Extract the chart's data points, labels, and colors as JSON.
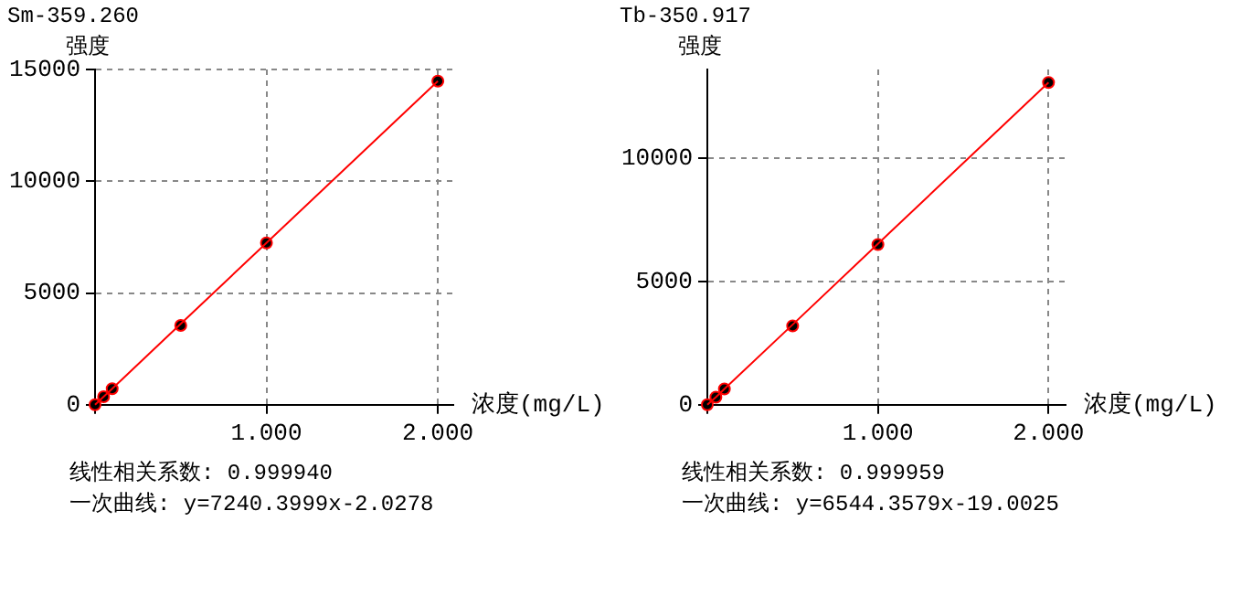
{
  "chart_data": [
    {
      "type": "scatter",
      "title": "Sm-359.260",
      "ylabel": "强度",
      "xlabel": "浓度(mg/L)",
      "x": [
        0,
        0.05,
        0.1,
        0.5,
        1,
        2
      ],
      "series": [
        {
          "type": "scatter",
          "marker": "circle",
          "color": "#000000",
          "values": [
            0,
            360,
            720,
            3550,
            7240,
            14480
          ]
        },
        {
          "type": "line",
          "marker": "none",
          "color": "#ff0000",
          "values": [
            0,
            360,
            720,
            3620,
            7240,
            14480
          ]
        }
      ],
      "xlim": [
        0,
        2.09
      ],
      "xticks": [
        {
          "value": 0,
          "label": null
        },
        {
          "value": 1,
          "label": "1.000"
        },
        {
          "value": 2,
          "label": "2.000"
        }
      ],
      "ylim": [
        0,
        15000
      ],
      "yticks": [
        0,
        5000,
        10000,
        15000
      ],
      "grid": true,
      "legend": false,
      "annotations": [
        "线性相关系数: 0.999940",
        "一次曲线: y=7240.3999x-2.0278"
      ]
    },
    {
      "type": "scatter",
      "title": "Tb-350.917",
      "ylabel": "强度",
      "xlabel": "浓度(mg/L)",
      "x": [
        0,
        0.05,
        0.1,
        0.5,
        1,
        2
      ],
      "series": [
        {
          "type": "scatter",
          "marker": "circle",
          "color": "#000000",
          "values": [
            0,
            310,
            640,
            3200,
            6500,
            13070
          ]
        },
        {
          "type": "line",
          "marker": "none",
          "color": "#ff0000",
          "values": [
            0,
            310,
            640,
            3250,
            6530,
            13070
          ]
        }
      ],
      "xlim": [
        0,
        2.1
      ],
      "xticks": [
        {
          "value": 0,
          "label": null
        },
        {
          "value": 1,
          "label": "1.000"
        },
        {
          "value": 2,
          "label": "2.000"
        }
      ],
      "ylim": [
        0,
        13600
      ],
      "yticks": [
        0,
        5000,
        10000
      ],
      "grid": true,
      "legend": false,
      "annotations": [
        "线性相关系数: 0.999959",
        "一次曲线: y=6544.3579x-19.0025"
      ]
    }
  ]
}
